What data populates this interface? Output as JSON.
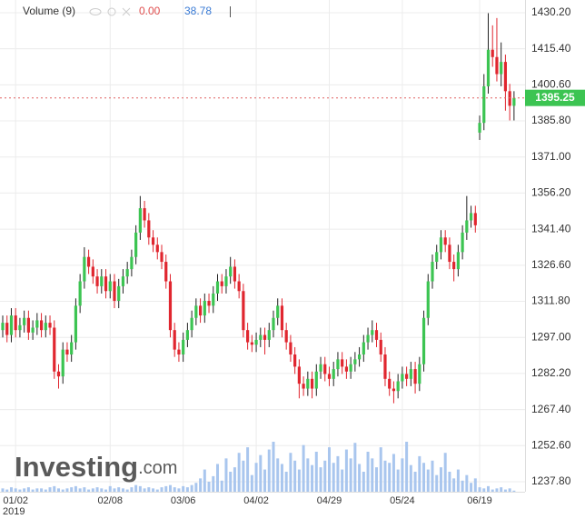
{
  "chart_data": {
    "type": "candlestick",
    "indicator_name": "Volume (9)",
    "indicator_values": [
      {
        "value": 0,
        "label": "0.00"
      },
      38.78
    ],
    "watermark": "Investing",
    "watermark_suffix": ".com",
    "year_label": "2019",
    "up_color": "#3cc452",
    "down_color": "#e0262f",
    "volume_color": "#a9c6ee",
    "ylim": [
      1233.7,
      1435.4
    ],
    "yticks": [
      {
        "value": 1237.8,
        "label": "1237.80"
      },
      {
        "value": 1252.6,
        "label": "1252.60"
      },
      {
        "value": 1267.4,
        "label": "1267.40"
      },
      {
        "value": 1282.2,
        "label": "1282.20"
      },
      {
        "value": 1297,
        "label": "1297.00"
      },
      {
        "value": 1311.8,
        "label": "1311.80"
      },
      {
        "value": 1326.6,
        "label": "1326.60"
      },
      {
        "value": 1341.4,
        "label": "1341.40"
      },
      {
        "value": 1356.2,
        "label": "1356.20"
      },
      {
        "value": 1371,
        "label": "1371.00"
      },
      {
        "value": 1385.8,
        "label": "1385.80"
      },
      {
        "value": 1400.6,
        "label": "1400.60"
      },
      {
        "value": 1415.4,
        "label": "1415.40"
      },
      {
        "value": 1430.2,
        "label": "1430.20"
      }
    ],
    "grid": true,
    "categories": [
      null,
      null,
      null,
      "01/02",
      null,
      null,
      null,
      null,
      null,
      null,
      null,
      null,
      null,
      null,
      null,
      null,
      null,
      null,
      null,
      null,
      null,
      null,
      null,
      null,
      null,
      "02/08",
      null,
      null,
      null,
      null,
      null,
      null,
      null,
      null,
      null,
      null,
      null,
      null,
      null,
      null,
      null,
      null,
      "03/06",
      null,
      null,
      null,
      null,
      null,
      null,
      null,
      null,
      null,
      null,
      null,
      null,
      null,
      null,
      null,
      null,
      "04/02",
      null,
      null,
      null,
      null,
      null,
      null,
      null,
      null,
      null,
      null,
      null,
      null,
      null,
      null,
      null,
      null,
      "04/29",
      null,
      null,
      null,
      null,
      null,
      null,
      null,
      null,
      null,
      null,
      null,
      null,
      null,
      null,
      null,
      null,
      "05/24",
      null,
      null,
      null,
      null,
      null,
      null,
      null,
      null,
      null,
      null,
      null,
      null,
      null,
      null,
      null,
      null,
      null,
      "06/19",
      null,
      null,
      null,
      null,
      null,
      null,
      null,
      null
    ],
    "open": [
      1300,
      1303,
      1298,
      1306,
      1300,
      1302,
      1305,
      1299,
      1301,
      1304,
      1300,
      1303,
      1301,
      1283,
      1281,
      1292,
      1290,
      1295,
      1310,
      1320,
      1330,
      1326,
      1322,
      1318,
      1322,
      1316,
      1320,
      1312,
      1318,
      1322,
      1325,
      1330,
      1340,
      1350,
      1345,
      1338,
      1335,
      1332,
      1328,
      1320,
      1300,
      1292,
      1290,
      1296,
      1300,
      1305,
      1310,
      1306,
      1312,
      1310,
      1315,
      1320,
      1318,
      1322,
      1326,
      1320,
      1316,
      1300,
      1295,
      1294,
      1296,
      1298,
      1296,
      1300,
      1305,
      1310,
      1300,
      1295,
      1290,
      1285,
      1278,
      1276,
      1280,
      1276,
      1283,
      1286,
      1282,
      1280,
      1284,
      1288,
      1285,
      1283,
      1286,
      1288,
      1290,
      1295,
      1298,
      1300,
      1296,
      1290,
      1280,
      1276,
      1275,
      1279,
      1282,
      1280,
      1284,
      1278,
      1286,
      1305,
      1320,
      1328,
      1332,
      1338,
      1335,
      1328,
      1325,
      1332,
      1340,
      1345,
      1348,
      1381,
      1385,
      1400,
      1415,
      1412,
      1405,
      1410,
      1398,
      1392
    ],
    "high": [
      1306,
      1306,
      1309,
      1309,
      1305,
      1308,
      1308,
      1304,
      1307,
      1307,
      1306,
      1306,
      1304,
      1286,
      1295,
      1295,
      1298,
      1313,
      1323,
      1334,
      1333,
      1329,
      1325,
      1325,
      1325,
      1323,
      1323,
      1321,
      1325,
      1328,
      1333,
      1343,
      1355,
      1353,
      1348,
      1341,
      1338,
      1335,
      1331,
      1323,
      1303,
      1295,
      1299,
      1303,
      1308,
      1313,
      1313,
      1315,
      1315,
      1318,
      1323,
      1323,
      1325,
      1330,
      1329,
      1323,
      1319,
      1303,
      1298,
      1299,
      1301,
      1301,
      1303,
      1308,
      1313,
      1313,
      1303,
      1298,
      1293,
      1288,
      1281,
      1283,
      1283,
      1286,
      1289,
      1289,
      1285,
      1287,
      1291,
      1291,
      1288,
      1289,
      1291,
      1293,
      1298,
      1301,
      1304,
      1303,
      1299,
      1293,
      1283,
      1279,
      1282,
      1285,
      1285,
      1287,
      1287,
      1289,
      1308,
      1323,
      1331,
      1335,
      1341,
      1341,
      1338,
      1331,
      1335,
      1343,
      1355,
      1351,
      1351,
      1388,
      1405,
      1430,
      1425,
      1428,
      1418,
      1413,
      1401,
      1398
    ],
    "low": [
      1297,
      1295,
      1295,
      1297,
      1297,
      1299,
      1296,
      1296,
      1298,
      1297,
      1297,
      1298,
      1280,
      1276,
      1278,
      1287,
      1287,
      1292,
      1307,
      1317,
      1323,
      1319,
      1315,
      1315,
      1313,
      1313,
      1309,
      1309,
      1315,
      1319,
      1322,
      1327,
      1337,
      1342,
      1335,
      1332,
      1329,
      1325,
      1317,
      1297,
      1289,
      1287,
      1287,
      1293,
      1297,
      1302,
      1303,
      1303,
      1307,
      1307,
      1312,
      1315,
      1315,
      1319,
      1317,
      1313,
      1297,
      1292,
      1291,
      1291,
      1293,
      1290,
      1293,
      1297,
      1302,
      1297,
      1292,
      1287,
      1282,
      1272,
      1273,
      1273,
      1272,
      1273,
      1280,
      1279,
      1277,
      1277,
      1281,
      1282,
      1280,
      1280,
      1283,
      1285,
      1287,
      1292,
      1295,
      1293,
      1287,
      1277,
      1273,
      1270,
      1272,
      1276,
      1277,
      1277,
      1274,
      1275,
      1283,
      1302,
      1317,
      1325,
      1329,
      1332,
      1325,
      1320,
      1322,
      1329,
      1337,
      1342,
      1340,
      1378,
      1382,
      1397,
      1408,
      1402,
      1400,
      1390,
      1386,
      1386
    ],
    "close": [
      1303,
      1298,
      1306,
      1300,
      1302,
      1305,
      1299,
      1301,
      1304,
      1300,
      1303,
      1301,
      1283,
      1281,
      1292,
      1290,
      1295,
      1310,
      1320,
      1330,
      1326,
      1322,
      1318,
      1322,
      1316,
      1320,
      1312,
      1318,
      1322,
      1325,
      1330,
      1340,
      1350,
      1345,
      1338,
      1335,
      1332,
      1328,
      1320,
      1300,
      1292,
      1290,
      1296,
      1300,
      1305,
      1310,
      1306,
      1312,
      1310,
      1315,
      1320,
      1318,
      1322,
      1326,
      1320,
      1316,
      1300,
      1295,
      1294,
      1296,
      1298,
      1296,
      1300,
      1305,
      1310,
      1300,
      1295,
      1290,
      1285,
      1278,
      1276,
      1280,
      1276,
      1283,
      1286,
      1282,
      1280,
      1284,
      1288,
      1285,
      1283,
      1286,
      1288,
      1290,
      1295,
      1298,
      1300,
      1296,
      1290,
      1280,
      1276,
      1275,
      1279,
      1282,
      1280,
      1284,
      1278,
      1286,
      1305,
      1320,
      1328,
      1332,
      1338,
      1335,
      1328,
      1325,
      1332,
      1340,
      1345,
      1348,
      1343,
      1385,
      1400,
      1415,
      1412,
      1405,
      1410,
      1398,
      1392,
      1395.25
    ],
    "volume": [
      3,
      2,
      4,
      3,
      2,
      3,
      4,
      2,
      3,
      3,
      2,
      4,
      5,
      3,
      2,
      3,
      4,
      5,
      3,
      4,
      2,
      3,
      4,
      3,
      2,
      5,
      3,
      4,
      3,
      2,
      4,
      6,
      5,
      3,
      4,
      3,
      2,
      4,
      5,
      6,
      4,
      3,
      5,
      4,
      6,
      8,
      12,
      20,
      9,
      14,
      25,
      10,
      30,
      18,
      22,
      35,
      28,
      40,
      15,
      26,
      33,
      20,
      38,
      45,
      30,
      25,
      18,
      35,
      28,
      20,
      42,
      30,
      24,
      36,
      22,
      28,
      40,
      26,
      32,
      20,
      38,
      30,
      44,
      25,
      18,
      36,
      30,
      22,
      40,
      28,
      26,
      34,
      20,
      30,
      45,
      24,
      18,
      32,
      26,
      20,
      28,
      15,
      22,
      35,
      18,
      12,
      20,
      10,
      15,
      8,
      12,
      4,
      3,
      5,
      2,
      3,
      4,
      2,
      3,
      1
    ]
  }
}
